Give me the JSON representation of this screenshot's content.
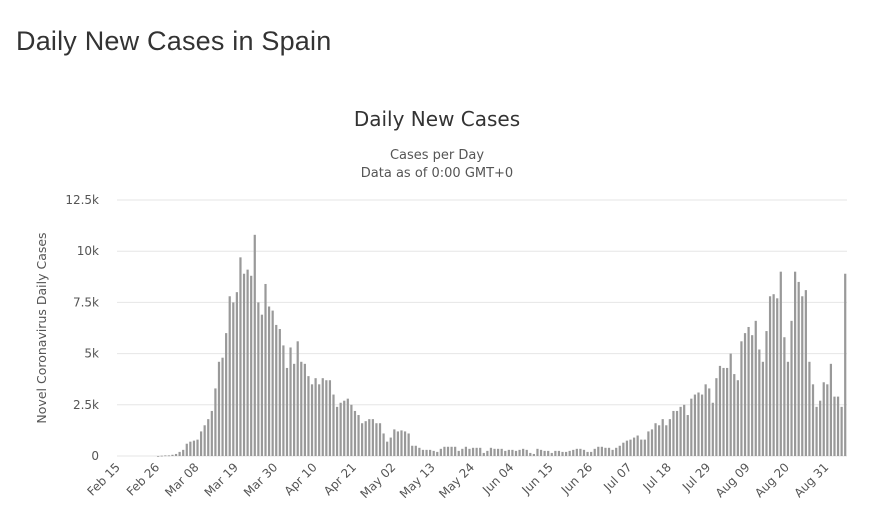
{
  "page": {
    "heading": "Daily New Cases in Spain"
  },
  "chart_data": {
    "type": "bar",
    "title": "Daily New Cases",
    "subtitle_lines": [
      "Cases per Day",
      "Data as of 0:00 GMT+0"
    ],
    "ylabel": "Novel Coronavirus Daily Cases",
    "xlabel": "",
    "ylim": [
      0,
      12500
    ],
    "y_ticks": [
      {
        "value": 0,
        "label": "0"
      },
      {
        "value": 2500,
        "label": "2.5k"
      },
      {
        "value": 5000,
        "label": "5k"
      },
      {
        "value": 7500,
        "label": "7.5k"
      },
      {
        "value": 10000,
        "label": "10k"
      },
      {
        "value": 12500,
        "label": "12.5k"
      }
    ],
    "x_ticks": [
      {
        "index": 0,
        "label": "Feb 15"
      },
      {
        "index": 11,
        "label": "Feb 26"
      },
      {
        "index": 22,
        "label": "Mar 08"
      },
      {
        "index": 33,
        "label": "Mar 19"
      },
      {
        "index": 44,
        "label": "Mar 30"
      },
      {
        "index": 55,
        "label": "Apr 10"
      },
      {
        "index": 66,
        "label": "Apr 21"
      },
      {
        "index": 77,
        "label": "May 02"
      },
      {
        "index": 88,
        "label": "May 13"
      },
      {
        "index": 99,
        "label": "May 24"
      },
      {
        "index": 110,
        "label": "Jun 04"
      },
      {
        "index": 121,
        "label": "Jun 15"
      },
      {
        "index": 132,
        "label": "Jun 26"
      },
      {
        "index": 143,
        "label": "Jul 07"
      },
      {
        "index": 154,
        "label": "Jul 18"
      },
      {
        "index": 165,
        "label": "Jul 29"
      },
      {
        "index": 176,
        "label": "Aug 09"
      },
      {
        "index": 187,
        "label": "Aug 20"
      },
      {
        "index": 198,
        "label": "Aug 31"
      }
    ],
    "grid": true,
    "legend": "none",
    "colors": {
      "bar": "#999999",
      "grid": "#e6e6e6"
    },
    "values": [
      0,
      0,
      0,
      0,
      0,
      0,
      0,
      0,
      0,
      0,
      0,
      2,
      15,
      30,
      30,
      60,
      100,
      200,
      300,
      600,
      700,
      750,
      800,
      1200,
      1500,
      1800,
      2200,
      3300,
      4600,
      4800,
      6000,
      7800,
      7500,
      8000,
      9700,
      8900,
      9100,
      8800,
      10800,
      7500,
      6900,
      8400,
      7300,
      7100,
      6400,
      6200,
      5400,
      4300,
      5300,
      4500,
      5600,
      4600,
      4500,
      3900,
      3500,
      3800,
      3500,
      3800,
      3700,
      3700,
      3000,
      2400,
      2600,
      2700,
      2800,
      2500,
      2200,
      2000,
      1600,
      1700,
      1800,
      1800,
      1600,
      1600,
      1100,
      700,
      900,
      1300,
      1200,
      1250,
      1200,
      1100,
      500,
      500,
      400,
      300,
      300,
      300,
      250,
      200,
      350,
      450,
      450,
      450,
      450,
      250,
      350,
      450,
      350,
      400,
      400,
      400,
      150,
      250,
      400,
      350,
      350,
      350,
      250,
      300,
      300,
      250,
      300,
      350,
      300,
      150,
      100,
      350,
      300,
      250,
      250,
      150,
      250,
      250,
      200,
      200,
      250,
      300,
      350,
      350,
      300,
      200,
      200,
      350,
      450,
      450,
      400,
      400,
      300,
      400,
      500,
      650,
      750,
      800,
      900,
      1000,
      800,
      800,
      1200,
      1300,
      1600,
      1500,
      1800,
      1500,
      1800,
      2200,
      2200,
      2400,
      2500,
      2000,
      2800,
      3000,
      3100,
      3000,
      3500,
      3300,
      2600,
      3800,
      4400,
      4300,
      4300,
      5000,
      4000,
      3700,
      5600,
      6000,
      6300,
      5900,
      6600,
      5200,
      4600,
      6100,
      7800,
      7900,
      7700,
      9000,
      5800,
      4600,
      6600,
      9000,
      8500,
      7800,
      8100,
      4600,
      3500,
      2400,
      2700,
      3600,
      3500,
      4500,
      2900,
      2900,
      2400,
      8900
    ]
  }
}
